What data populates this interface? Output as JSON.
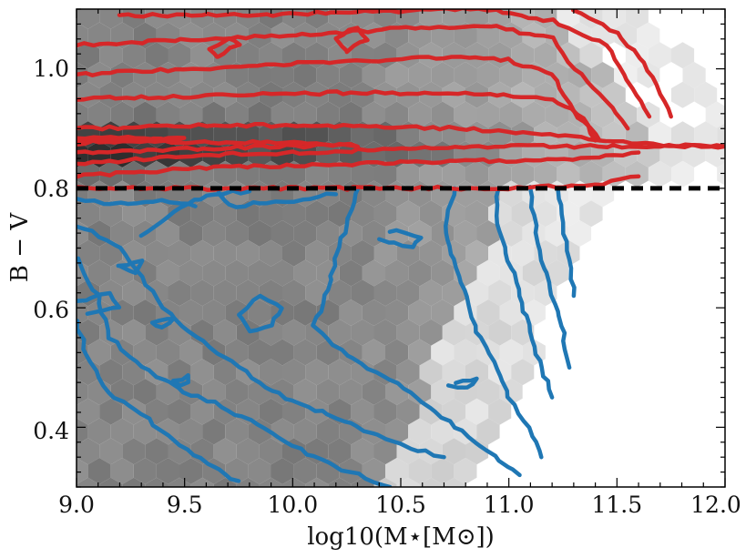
{
  "chart_data": {
    "type": "heatmap",
    "title": "",
    "xlabel": "log10(M⋆[M⊙])",
    "ylabel": "B − V",
    "xlim": [
      9.0,
      12.0
    ],
    "ylim": [
      0.3,
      1.1
    ],
    "x_ticks": [
      "9.0",
      "9.5",
      "10.0",
      "10.5",
      "11.0",
      "11.5",
      "12.0"
    ],
    "y_ticks": [
      "0.4",
      "0.6",
      "0.8",
      "1.0"
    ],
    "x_tick_values": [
      9.0,
      9.5,
      10.0,
      10.5,
      11.0,
      11.5,
      12.0
    ],
    "y_tick_values": [
      0.4,
      0.6,
      0.8,
      1.0
    ],
    "grid": false,
    "legend": "none",
    "background": "grayscale hexbin density of galaxies",
    "divider": {
      "y": 0.8,
      "style": "dashed",
      "color": "#000000"
    },
    "contours": [
      {
        "group": "red sequence (B−V > 0.8)",
        "color": "#d62728",
        "approx_extent": {
          "x": [
            9.0,
            12.0
          ],
          "y": [
            0.8,
            1.1
          ]
        },
        "peak": {
          "x": 9.2,
          "y": 0.87
        }
      },
      {
        "group": "blue cloud (B−V < 0.8)",
        "color": "#1f77b4",
        "approx_extent": {
          "x": [
            9.0,
            11.3
          ],
          "y": [
            0.3,
            0.8
          ]
        }
      }
    ]
  }
}
